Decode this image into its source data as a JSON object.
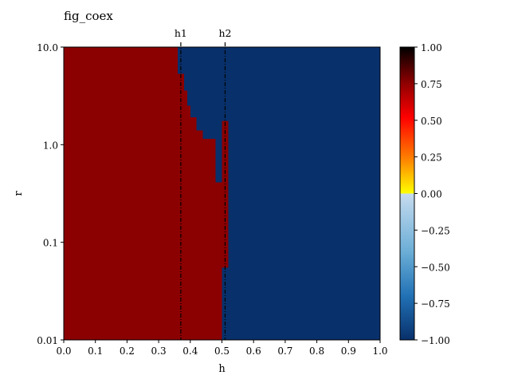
{
  "chart_data": {
    "type": "heatmap",
    "title": "fig_coex",
    "xlabel": "h",
    "ylabel": "r",
    "xlim": [
      0.0,
      1.0
    ],
    "ylim": [
      0.01,
      10.0
    ],
    "y_scale": "log",
    "x_ticks": [
      "0.0",
      "0.1",
      "0.2",
      "0.3",
      "0.4",
      "0.5",
      "0.6",
      "0.7",
      "0.8",
      "0.9",
      "1.0"
    ],
    "y_ticks": [
      {
        "value": 10.0,
        "label": "10.0"
      },
      {
        "value": 1.0,
        "label": "1.0"
      },
      {
        "value": 0.1,
        "label": "0.1"
      },
      {
        "value": 0.01,
        "label": "0.01"
      }
    ],
    "colorbar": {
      "range": [
        -1.0,
        1.0
      ],
      "ticks": [
        "1.00",
        "0.75",
        "0.50",
        "0.25",
        "0.00",
        "−0.25",
        "−0.50",
        "−0.75",
        "−1.00"
      ],
      "negative_colors": [
        "#08306b",
        "#2171b5",
        "#6baed6",
        "#c6dbef"
      ],
      "positive_colors": [
        "#ffff00",
        "#ff8000",
        "#ff0000",
        "#8b0000",
        "#000000"
      ]
    },
    "vertical_lines": [
      {
        "label": "h1",
        "x": 0.37
      },
      {
        "label": "h2",
        "x": 0.51
      }
    ],
    "regions": [
      {
        "value": 1.0,
        "note": "region left of boundary (yellow)"
      },
      {
        "value": -1.0,
        "note": "region right of boundary (dark blue)"
      },
      {
        "value": 0.85,
        "note": "narrow strip at h≈0.51"
      }
    ],
    "boundary": [
      {
        "r_low": 5.3,
        "r_high": 10.0,
        "h": 0.36
      },
      {
        "r_low": 3.6,
        "r_high": 5.3,
        "h": 0.38
      },
      {
        "r_low": 2.5,
        "r_high": 3.6,
        "h": 0.39
      },
      {
        "r_low": 1.9,
        "r_high": 2.5,
        "h": 0.4
      },
      {
        "r_low": 1.4,
        "r_high": 1.9,
        "h": 0.42
      },
      {
        "r_low": 1.15,
        "r_high": 1.4,
        "h": 0.44
      },
      {
        "r_low": 0.41,
        "r_high": 1.15,
        "h": 0.48
      },
      {
        "r_low": 0.35,
        "r_high": 0.41,
        "h": 0.5
      },
      {
        "r_low": 0.01,
        "r_high": 0.35,
        "h": 0.5
      }
    ],
    "strip": {
      "h_low": 0.5,
      "h_high": 0.52,
      "r_low": 0.055,
      "r_high": 1.75
    }
  }
}
